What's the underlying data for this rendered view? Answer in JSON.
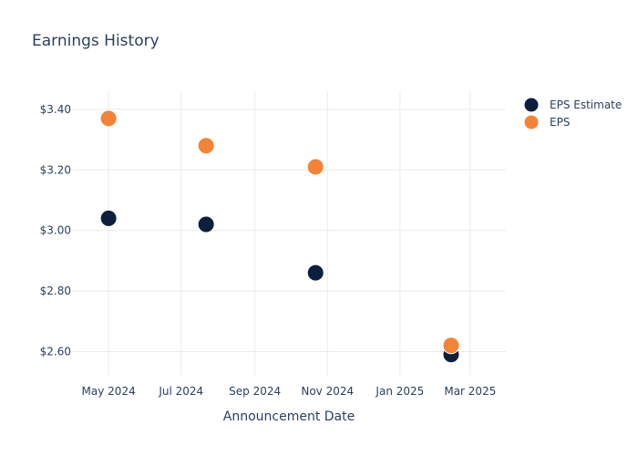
{
  "chart_data": {
    "type": "scatter",
    "title": "Earnings History",
    "xlabel": "Announcement Date",
    "ylabel": "",
    "x_axis_type": "date",
    "xlim": [
      "2024-04-01",
      "2025-03-31"
    ],
    "ylim": [
      2.52,
      3.46
    ],
    "x_ticks": [
      {
        "date": "2024-05-01",
        "label": "May 2024"
      },
      {
        "date": "2024-07-01",
        "label": "Jul 2024"
      },
      {
        "date": "2024-09-01",
        "label": "Sep 2024"
      },
      {
        "date": "2024-11-01",
        "label": "Nov 2024"
      },
      {
        "date": "2025-01-01",
        "label": "Jan 2025"
      },
      {
        "date": "2025-03-01",
        "label": "Mar 2025"
      }
    ],
    "y_ticks": [
      {
        "value": 2.6,
        "label": "$2.60"
      },
      {
        "value": 2.8,
        "label": "$2.80"
      },
      {
        "value": 3.0,
        "label": "$3.00"
      },
      {
        "value": 3.2,
        "label": "$3.20"
      },
      {
        "value": 3.4,
        "label": "$3.40"
      }
    ],
    "grid": true,
    "legend_position": "top-right",
    "series": [
      {
        "name": "EPS Estimate",
        "color": "#0c1f3f",
        "points": [
          {
            "x": "2024-05-01",
            "y": 3.04
          },
          {
            "x": "2024-07-22",
            "y": 3.02
          },
          {
            "x": "2024-10-22",
            "y": 2.86
          },
          {
            "x": "2025-02-13",
            "y": 2.59
          }
        ]
      },
      {
        "name": "EPS",
        "color": "#f48335",
        "points": [
          {
            "x": "2024-05-01",
            "y": 3.37
          },
          {
            "x": "2024-07-22",
            "y": 3.28
          },
          {
            "x": "2024-10-22",
            "y": 3.21
          },
          {
            "x": "2025-02-13",
            "y": 2.62
          }
        ]
      }
    ]
  }
}
